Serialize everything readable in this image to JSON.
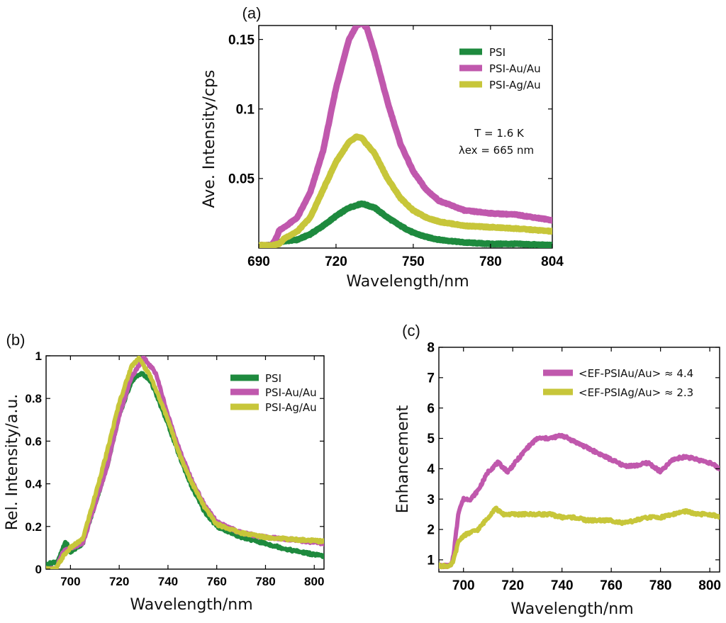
{
  "colors": {
    "psi": "#1e8a3e",
    "au": "#c058ad",
    "ag": "#c7c63a"
  },
  "chart_data": [
    {
      "id": "a",
      "type": "line",
      "panel_label": "(a)",
      "xlabel": "Wavelength/nm",
      "ylabel": "Ave. Intensity/cps",
      "xlim": [
        690,
        804
      ],
      "ylim": [
        0,
        0.16
      ],
      "xticks": [
        690,
        720,
        750,
        780,
        804
      ],
      "xtick_labels": [
        "690",
        "720",
        "750",
        "780",
        "804"
      ],
      "yticks": [
        0.05,
        0.1,
        0.15
      ],
      "ytick_labels": [
        "0.05",
        "0.1",
        "0.15"
      ],
      "legend_position": "top-right",
      "annotations": [
        "T = 1.6 K",
        "λex = 665 nm"
      ],
      "series": [
        {
          "name": "PSI",
          "color_key": "psi",
          "x": [
            690,
            695,
            697,
            700,
            705,
            710,
            715,
            720,
            725,
            730,
            735,
            740,
            745,
            750,
            755,
            760,
            770,
            780,
            790,
            804
          ],
          "y": [
            0.002,
            0.002,
            0.004,
            0.005,
            0.006,
            0.01,
            0.016,
            0.023,
            0.029,
            0.032,
            0.029,
            0.022,
            0.016,
            0.011,
            0.008,
            0.006,
            0.004,
            0.003,
            0.003,
            0.002
          ]
        },
        {
          "name": "PSI-Au/Au",
          "color_key": "au",
          "x": [
            690,
            695,
            697,
            698,
            700,
            705,
            710,
            715,
            720,
            725,
            728,
            730,
            732,
            735,
            740,
            745,
            750,
            755,
            760,
            770,
            780,
            790,
            804
          ],
          "y": [
            0.002,
            0.002,
            0.008,
            0.013,
            0.015,
            0.022,
            0.04,
            0.07,
            0.115,
            0.15,
            0.16,
            0.162,
            0.158,
            0.14,
            0.105,
            0.075,
            0.055,
            0.042,
            0.034,
            0.027,
            0.025,
            0.024,
            0.02
          ]
        },
        {
          "name": "PSI-Ag/Au",
          "color_key": "ag",
          "x": [
            690,
            695,
            698,
            700,
            705,
            710,
            715,
            720,
            725,
            728,
            730,
            735,
            740,
            745,
            750,
            755,
            760,
            770,
            780,
            790,
            804
          ],
          "y": [
            0.002,
            0.002,
            0.003,
            0.007,
            0.012,
            0.022,
            0.042,
            0.062,
            0.076,
            0.08,
            0.079,
            0.068,
            0.05,
            0.036,
            0.027,
            0.022,
            0.019,
            0.016,
            0.015,
            0.014,
            0.012
          ]
        }
      ]
    },
    {
      "id": "b",
      "type": "line",
      "panel_label": "(b)",
      "xlabel": "Wavelength/nm",
      "ylabel": "Rel. Intensity/a.u.",
      "xlim": [
        690,
        804
      ],
      "ylim": [
        0,
        1
      ],
      "xticks": [
        700,
        720,
        740,
        760,
        780,
        800
      ],
      "xtick_labels": [
        "700",
        "720",
        "740",
        "760",
        "780",
        "800"
      ],
      "yticks": [
        0,
        0.2,
        0.4,
        0.6,
        0.8,
        1
      ],
      "ytick_labels": [
        "0",
        "0.2",
        "0.4",
        "0.6",
        "0.8",
        "1"
      ],
      "legend_position": "top-right",
      "series": [
        {
          "name": "PSI",
          "color_key": "psi",
          "x": [
            690,
            695,
            698,
            700,
            705,
            710,
            715,
            720,
            725,
            729,
            733,
            740,
            745,
            750,
            755,
            760,
            770,
            780,
            790,
            804
          ],
          "y": [
            0.02,
            0.04,
            0.13,
            0.08,
            0.12,
            0.3,
            0.48,
            0.72,
            0.88,
            0.92,
            0.88,
            0.68,
            0.52,
            0.38,
            0.27,
            0.2,
            0.15,
            0.12,
            0.09,
            0.06
          ]
        },
        {
          "name": "PSI-Au/Au",
          "color_key": "au",
          "x": [
            690,
            694,
            697,
            700,
            705,
            710,
            715,
            720,
            725,
            730,
            735,
            740,
            745,
            750,
            755,
            760,
            770,
            780,
            790,
            804
          ],
          "y": [
            0.0,
            0.0,
            0.08,
            0.1,
            0.12,
            0.3,
            0.48,
            0.72,
            0.9,
            0.99,
            0.92,
            0.72,
            0.55,
            0.41,
            0.3,
            0.22,
            0.17,
            0.15,
            0.14,
            0.12
          ]
        },
        {
          "name": "PSI-Ag/Au",
          "color_key": "ag",
          "x": [
            690,
            694,
            697,
            700,
            705,
            710,
            715,
            720,
            725,
            728,
            733,
            740,
            745,
            750,
            755,
            760,
            770,
            780,
            790,
            804
          ],
          "y": [
            0.0,
            0.0,
            0.06,
            0.1,
            0.14,
            0.34,
            0.55,
            0.78,
            0.95,
            0.99,
            0.9,
            0.7,
            0.53,
            0.4,
            0.29,
            0.21,
            0.17,
            0.15,
            0.14,
            0.13
          ]
        }
      ]
    },
    {
      "id": "c",
      "type": "line",
      "panel_label": "(c)",
      "xlabel": "Wavelength/nm",
      "ylabel": "Enhancement",
      "xlim": [
        690,
        804
      ],
      "ylim": [
        0.6,
        8
      ],
      "xticks": [
        700,
        720,
        740,
        760,
        780,
        800
      ],
      "xtick_labels": [
        "700",
        "720",
        "740",
        "760",
        "780",
        "800"
      ],
      "yticks": [
        1,
        2,
        3,
        4,
        5,
        6,
        7,
        8
      ],
      "ytick_labels": [
        "1",
        "2",
        "3",
        "4",
        "5",
        "6",
        "7",
        "8"
      ],
      "legend_position": "top-right",
      "series": [
        {
          "name": "<EF-PSIAu/Au> ≈ 4.4",
          "color_key": "au",
          "x": [
            690,
            695,
            696,
            698,
            700,
            703,
            706,
            710,
            714,
            718,
            722,
            726,
            730,
            735,
            740,
            745,
            750,
            755,
            760,
            765,
            770,
            775,
            780,
            785,
            790,
            795,
            800,
            804
          ],
          "y": [
            0.8,
            0.8,
            1.2,
            2.6,
            3.0,
            3.0,
            3.3,
            3.9,
            4.2,
            3.9,
            4.3,
            4.7,
            5.0,
            5.0,
            5.1,
            4.9,
            4.7,
            4.5,
            4.3,
            4.1,
            4.1,
            4.2,
            3.9,
            4.3,
            4.4,
            4.3,
            4.2,
            4.0
          ]
        },
        {
          "name": "<EF-PSIAg/Au> ≈ 2.3",
          "color_key": "ag",
          "x": [
            690,
            695,
            696,
            698,
            700,
            703,
            706,
            710,
            713,
            716,
            720,
            725,
            730,
            735,
            740,
            745,
            750,
            755,
            760,
            765,
            770,
            775,
            780,
            785,
            790,
            795,
            800,
            804
          ],
          "y": [
            0.8,
            0.8,
            1.0,
            1.6,
            1.8,
            1.9,
            2.0,
            2.4,
            2.7,
            2.5,
            2.5,
            2.5,
            2.5,
            2.5,
            2.4,
            2.4,
            2.3,
            2.3,
            2.3,
            2.2,
            2.3,
            2.4,
            2.4,
            2.5,
            2.6,
            2.5,
            2.5,
            2.4
          ]
        }
      ]
    }
  ]
}
